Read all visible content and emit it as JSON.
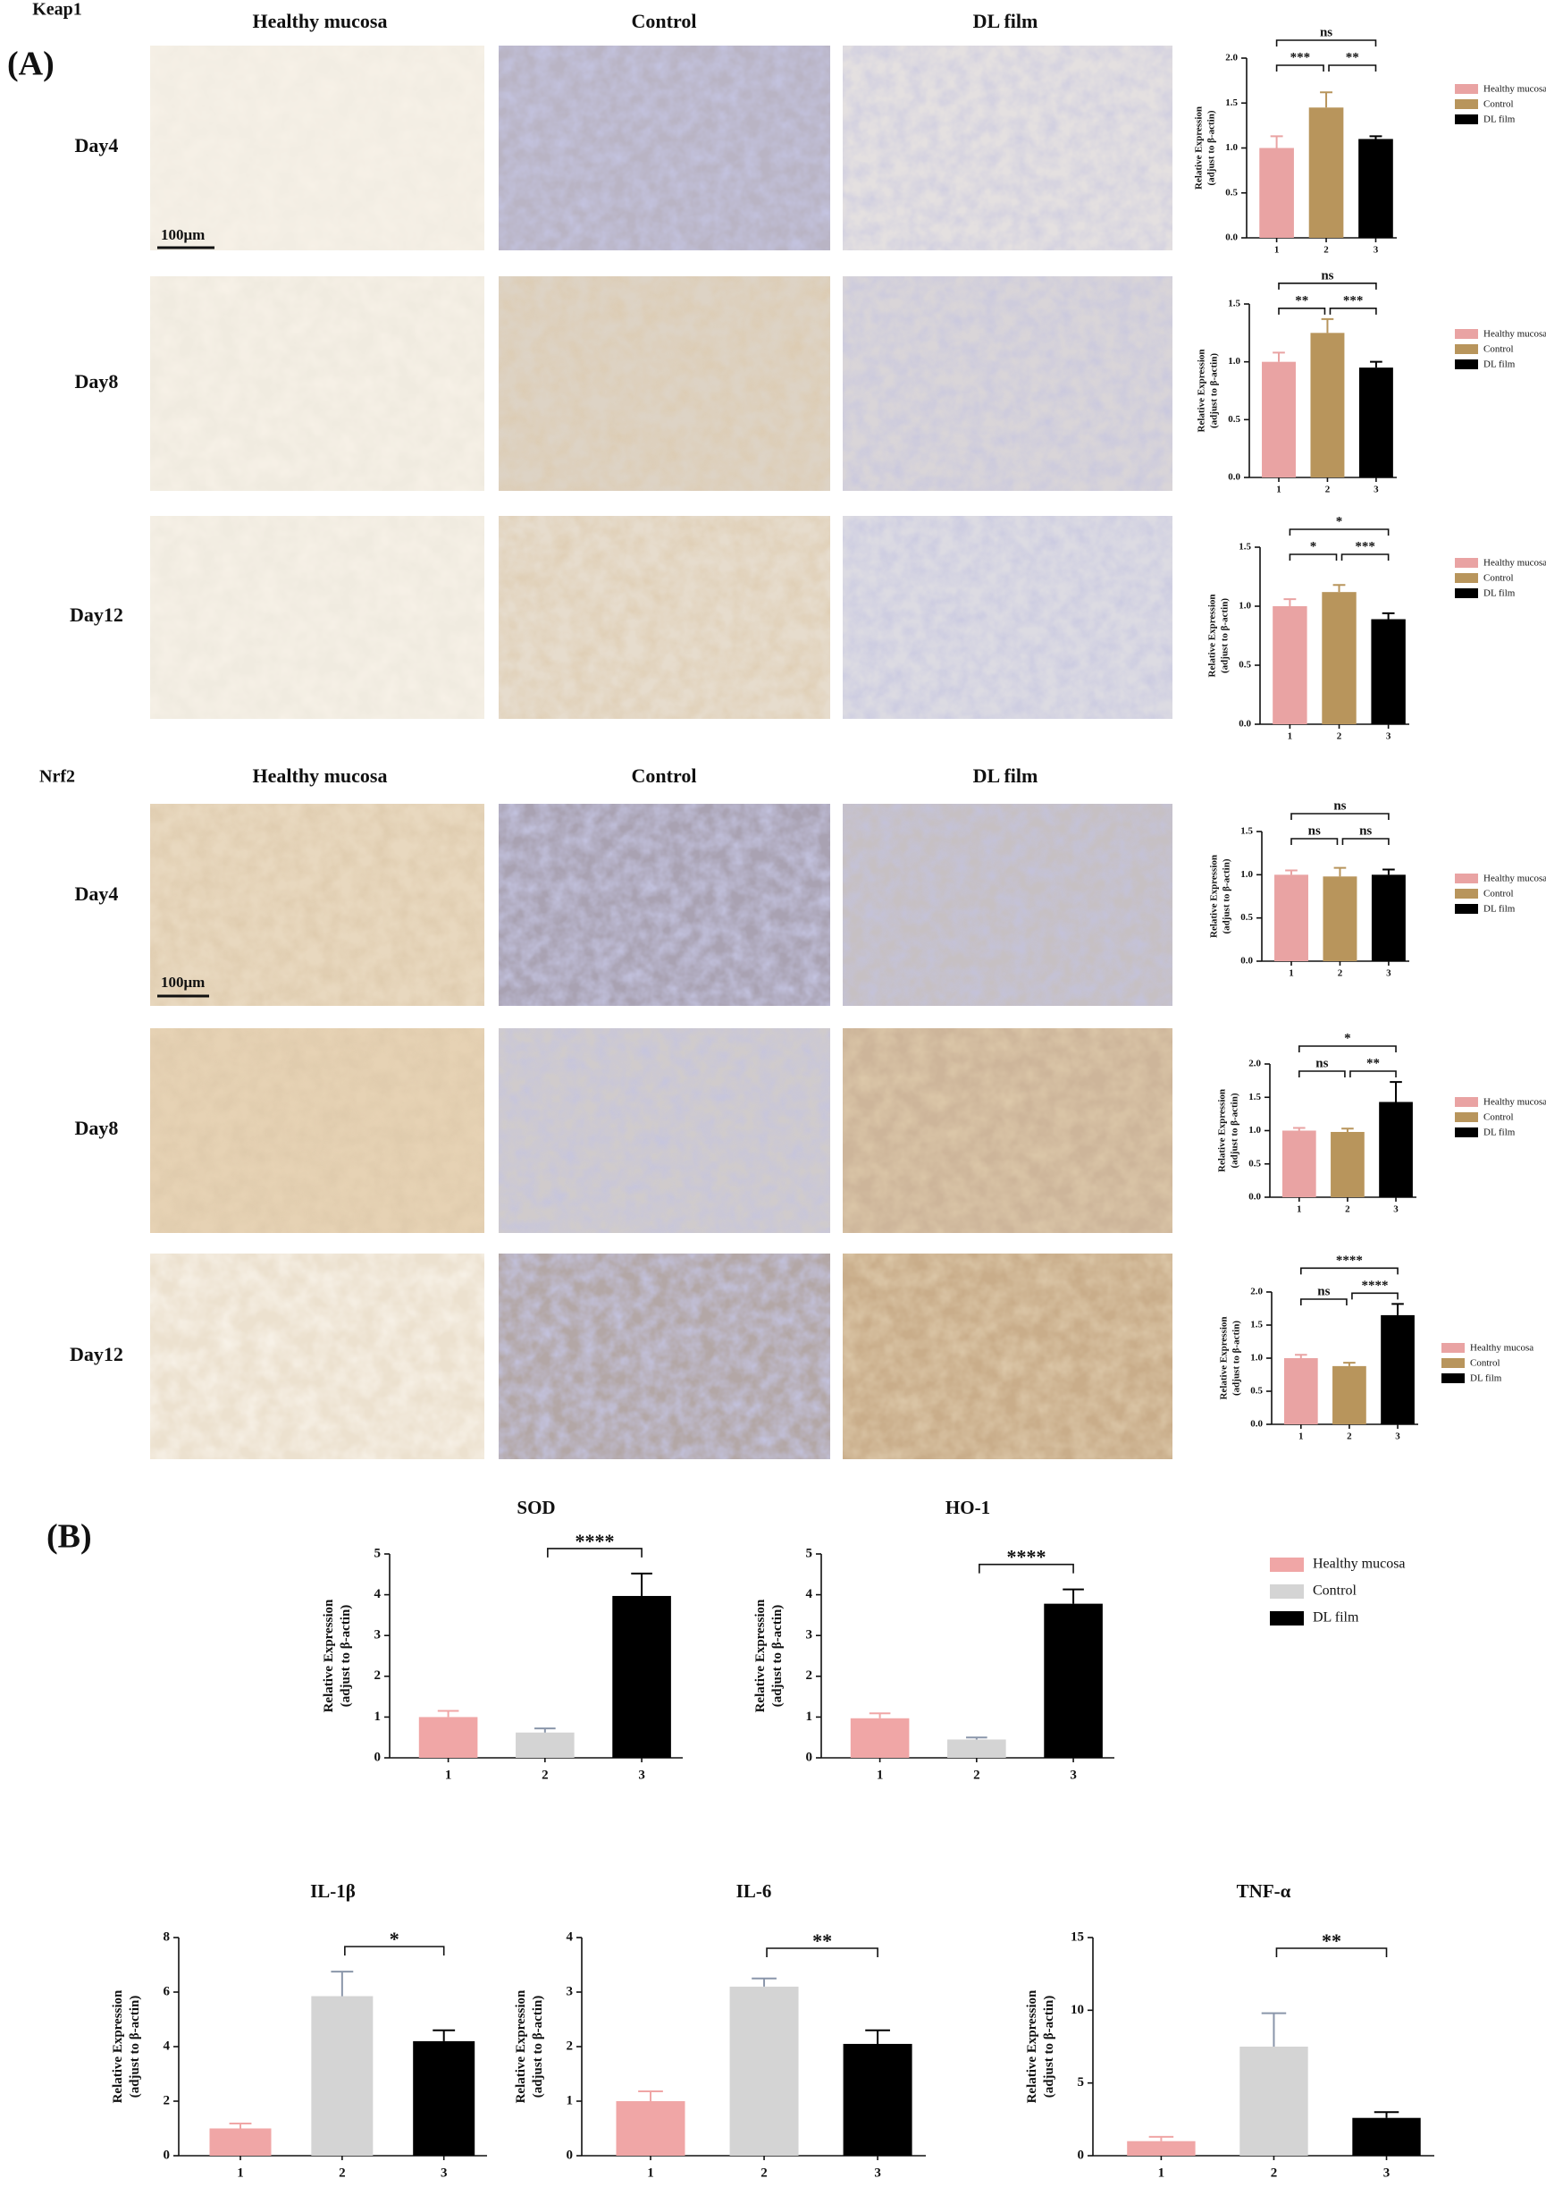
{
  "figure": {
    "panel_a_label": "(A)",
    "panel_b_label": "(B)",
    "sections": [
      {
        "title": "Keap1",
        "columns": [
          "Healthy mucosa",
          "Control",
          "DL film"
        ],
        "rows": [
          "Day4",
          "Day8",
          "Day12"
        ],
        "scale_bar": "100μm"
      },
      {
        "title": "Nrf2",
        "columns": [
          "Healthy mucosa",
          "Control",
          "DL film"
        ],
        "rows": [
          "Day4",
          "Day8",
          "Day12"
        ],
        "scale_bar": "100μm"
      }
    ]
  },
  "chart_data": [
    {
      "type": "bar",
      "categories": [
        "1",
        "2",
        "3"
      ],
      "values": [
        1.0,
        1.45,
        1.1
      ],
      "errors": [
        0.13,
        0.17,
        0.03
      ],
      "colors": [
        "#e9a3a3",
        "#b8955c",
        "#000000"
      ],
      "legend": [
        "Healthy mucosa",
        "Control",
        "DL film"
      ],
      "ylabel": [
        "Relative Expression",
        "(adjust to β-actin)"
      ],
      "ylim": [
        0,
        2
      ],
      "yticks": [
        {
          "value": 0,
          "label": "0.0"
        },
        0.5,
        {
          "value": 1,
          "label": "1.0"
        },
        1.5,
        {
          "value": 2,
          "label": "2.0"
        }
      ],
      "comparisons": [
        {
          "from": "1",
          "to": "2",
          "label": "***"
        },
        {
          "from": "2",
          "to": "3",
          "label": "**"
        },
        {
          "from": "1",
          "to": "3",
          "label": "ns"
        }
      ]
    },
    {
      "type": "bar",
      "categories": [
        "1",
        "2",
        "3"
      ],
      "values": [
        1.0,
        1.25,
        0.95
      ],
      "errors": [
        0.08,
        0.12,
        0.05
      ],
      "colors": [
        "#e9a3a3",
        "#b8955c",
        "#000000"
      ],
      "legend": [
        "Healthy mucosa",
        "Control",
        "DL film"
      ],
      "ylabel": [
        "Relative Expression",
        "(adjust to β-actin)"
      ],
      "ylim": [
        0,
        1.5
      ],
      "yticks": [
        {
          "value": 0,
          "label": "0.0"
        },
        0.5,
        {
          "value": 1,
          "label": "1.0"
        },
        1.5
      ],
      "comparisons": [
        {
          "from": "1",
          "to": "2",
          "label": "**"
        },
        {
          "from": "2",
          "to": "3",
          "label": "***"
        },
        {
          "from": "1",
          "to": "3",
          "label": "ns"
        }
      ]
    },
    {
      "type": "bar",
      "categories": [
        "1",
        "2",
        "3"
      ],
      "values": [
        1.0,
        1.12,
        0.89
      ],
      "errors": [
        0.06,
        0.06,
        0.05
      ],
      "colors": [
        "#e9a3a3",
        "#b8955c",
        "#000000"
      ],
      "legend": [
        "Healthy mucosa",
        "Control",
        "DL film"
      ],
      "ylabel": [
        "Relative Expression",
        "(adjust to β-actin)"
      ],
      "ylim": [
        0,
        1.5
      ],
      "yticks": [
        {
          "value": 0,
          "label": "0.0"
        },
        0.5,
        {
          "value": 1,
          "label": "1.0"
        },
        1.5
      ],
      "comparisons": [
        {
          "from": "1",
          "to": "2",
          "label": "*"
        },
        {
          "from": "2",
          "to": "3",
          "label": "***"
        },
        {
          "from": "1",
          "to": "3",
          "label": "*"
        }
      ]
    },
    {
      "type": "bar",
      "categories": [
        "1",
        "2",
        "3"
      ],
      "values": [
        1.0,
        0.98,
        1.0
      ],
      "errors": [
        0.05,
        0.1,
        0.06
      ],
      "colors": [
        "#e9a3a3",
        "#b8955c",
        "#000000"
      ],
      "legend": [
        "Healthy mucosa",
        "Control",
        "DL film"
      ],
      "ylabel": [
        "Relative Expression",
        "(adjust to β-actin)"
      ],
      "ylim": [
        0,
        1.5
      ],
      "yticks": [
        {
          "value": 0,
          "label": "0.0"
        },
        0.5,
        {
          "value": 1,
          "label": "1.0"
        },
        1.5
      ],
      "comparisons": [
        {
          "from": "1",
          "to": "2",
          "label": "ns"
        },
        {
          "from": "2",
          "to": "3",
          "label": "ns"
        },
        {
          "from": "1",
          "to": "3",
          "label": "ns"
        }
      ]
    },
    {
      "type": "bar",
      "categories": [
        "1",
        "2",
        "3"
      ],
      "values": [
        1.0,
        0.98,
        1.43
      ],
      "errors": [
        0.04,
        0.05,
        0.3
      ],
      "colors": [
        "#e9a3a3",
        "#b8955c",
        "#000000"
      ],
      "legend": [
        "Healthy mucosa",
        "Control",
        "DL film"
      ],
      "ylabel": [
        "Relative Expression",
        "(adjust to β-actin)"
      ],
      "ylim": [
        0,
        2
      ],
      "yticks": [
        {
          "value": 0,
          "label": "0.0"
        },
        0.5,
        {
          "value": 1,
          "label": "1.0"
        },
        1.5,
        {
          "value": 2,
          "label": "2.0"
        }
      ],
      "comparisons": [
        {
          "from": "1",
          "to": "2",
          "label": "ns"
        },
        {
          "from": "2",
          "to": "3",
          "label": "**"
        },
        {
          "from": "1",
          "to": "3",
          "label": "*"
        }
      ]
    },
    {
      "type": "bar",
      "categories": [
        "1",
        "2",
        "3"
      ],
      "values": [
        1.0,
        0.88,
        1.65
      ],
      "errors": [
        0.05,
        0.05,
        0.17
      ],
      "colors": [
        "#e9a3a3",
        "#b8955c",
        "#000000"
      ],
      "legend": [
        "Healthy mucosa",
        "Control",
        "DL film"
      ],
      "ylabel": [
        "Relative Expression",
        "(adjust to β-actin)"
      ],
      "ylim": [
        0,
        2
      ],
      "yticks": [
        {
          "value": 0,
          "label": "0.0"
        },
        0.5,
        {
          "value": 1,
          "label": "1.0"
        },
        1.5,
        {
          "value": 2,
          "label": "2.0"
        }
      ],
      "comparisons": [
        {
          "from": "1",
          "to": "2",
          "label": "ns"
        },
        {
          "from": "2",
          "to": "3",
          "label": "****"
        },
        {
          "from": "1",
          "to": "3",
          "label": "****"
        }
      ]
    },
    {
      "type": "bar",
      "title": "SOD",
      "categories": [
        "1",
        "2",
        "3"
      ],
      "values": [
        1.0,
        0.62,
        3.97
      ],
      "errors": [
        0.15,
        0.1,
        0.55
      ],
      "colors": [
        "#f0a6a6",
        "#d4d4d4",
        "#000000"
      ],
      "ylabel": [
        "Relative Expression",
        "(adjust to β-actin)"
      ],
      "ylim": [
        0,
        5
      ],
      "yticks": [
        0,
        1,
        2,
        3,
        4,
        5
      ],
      "comparisons": [
        {
          "from": "2",
          "to": "3",
          "label": "****"
        }
      ]
    },
    {
      "type": "bar",
      "title": "HO-1",
      "categories": [
        "1",
        "2",
        "3"
      ],
      "values": [
        0.97,
        0.45,
        3.78
      ],
      "errors": [
        0.12,
        0.05,
        0.35
      ],
      "colors": [
        "#f0a6a6",
        "#d4d4d4",
        "#000000"
      ],
      "legend": [
        "Healthy mucosa",
        "Control",
        "DL film"
      ],
      "ylabel": [
        "Relative Expression",
        "(adjust to β-actin)"
      ],
      "ylim": [
        0,
        5
      ],
      "yticks": [
        0,
        1,
        2,
        3,
        4,
        5
      ],
      "comparisons": [
        {
          "from": "2",
          "to": "3",
          "label": "****"
        }
      ]
    },
    {
      "type": "bar",
      "title": "IL-1β",
      "categories": [
        "1",
        "2",
        "3"
      ],
      "values": [
        1.0,
        5.85,
        4.2
      ],
      "errors": [
        0.18,
        0.9,
        0.4
      ],
      "colors": [
        "#f0a6a6",
        "#d4d4d4",
        "#000000"
      ],
      "ylabel": [
        "Relative Expression",
        "(adjust to β-actin)"
      ],
      "ylim": [
        0,
        8
      ],
      "yticks": [
        0,
        2,
        4,
        6,
        8
      ],
      "comparisons": [
        {
          "from": "2",
          "to": "3",
          "label": "*"
        }
      ]
    },
    {
      "type": "bar",
      "title": "IL-6",
      "categories": [
        "1",
        "2",
        "3"
      ],
      "values": [
        1.0,
        3.1,
        2.05
      ],
      "errors": [
        0.18,
        0.15,
        0.25
      ],
      "colors": [
        "#f0a6a6",
        "#d4d4d4",
        "#000000"
      ],
      "ylabel": [
        "Relative Expression",
        "(adjust to β-actin)"
      ],
      "ylim": [
        0,
        4
      ],
      "yticks": [
        0,
        1,
        2,
        3,
        4
      ],
      "comparisons": [
        {
          "from": "2",
          "to": "3",
          "label": "**"
        }
      ]
    },
    {
      "type": "bar",
      "title": "TNF-α",
      "categories": [
        "1",
        "2",
        "3"
      ],
      "values": [
        1.0,
        7.5,
        2.6
      ],
      "errors": [
        0.3,
        2.3,
        0.4
      ],
      "colors": [
        "#f0a6a6",
        "#d4d4d4",
        "#000000"
      ],
      "ylabel": [
        "Relative Expression",
        "(adjust to β-actin)"
      ],
      "ylim": [
        0,
        15
      ],
      "yticks": [
        0,
        5,
        10,
        15
      ],
      "comparisons": [
        {
          "from": "2",
          "to": "3",
          "label": "**"
        }
      ]
    }
  ]
}
